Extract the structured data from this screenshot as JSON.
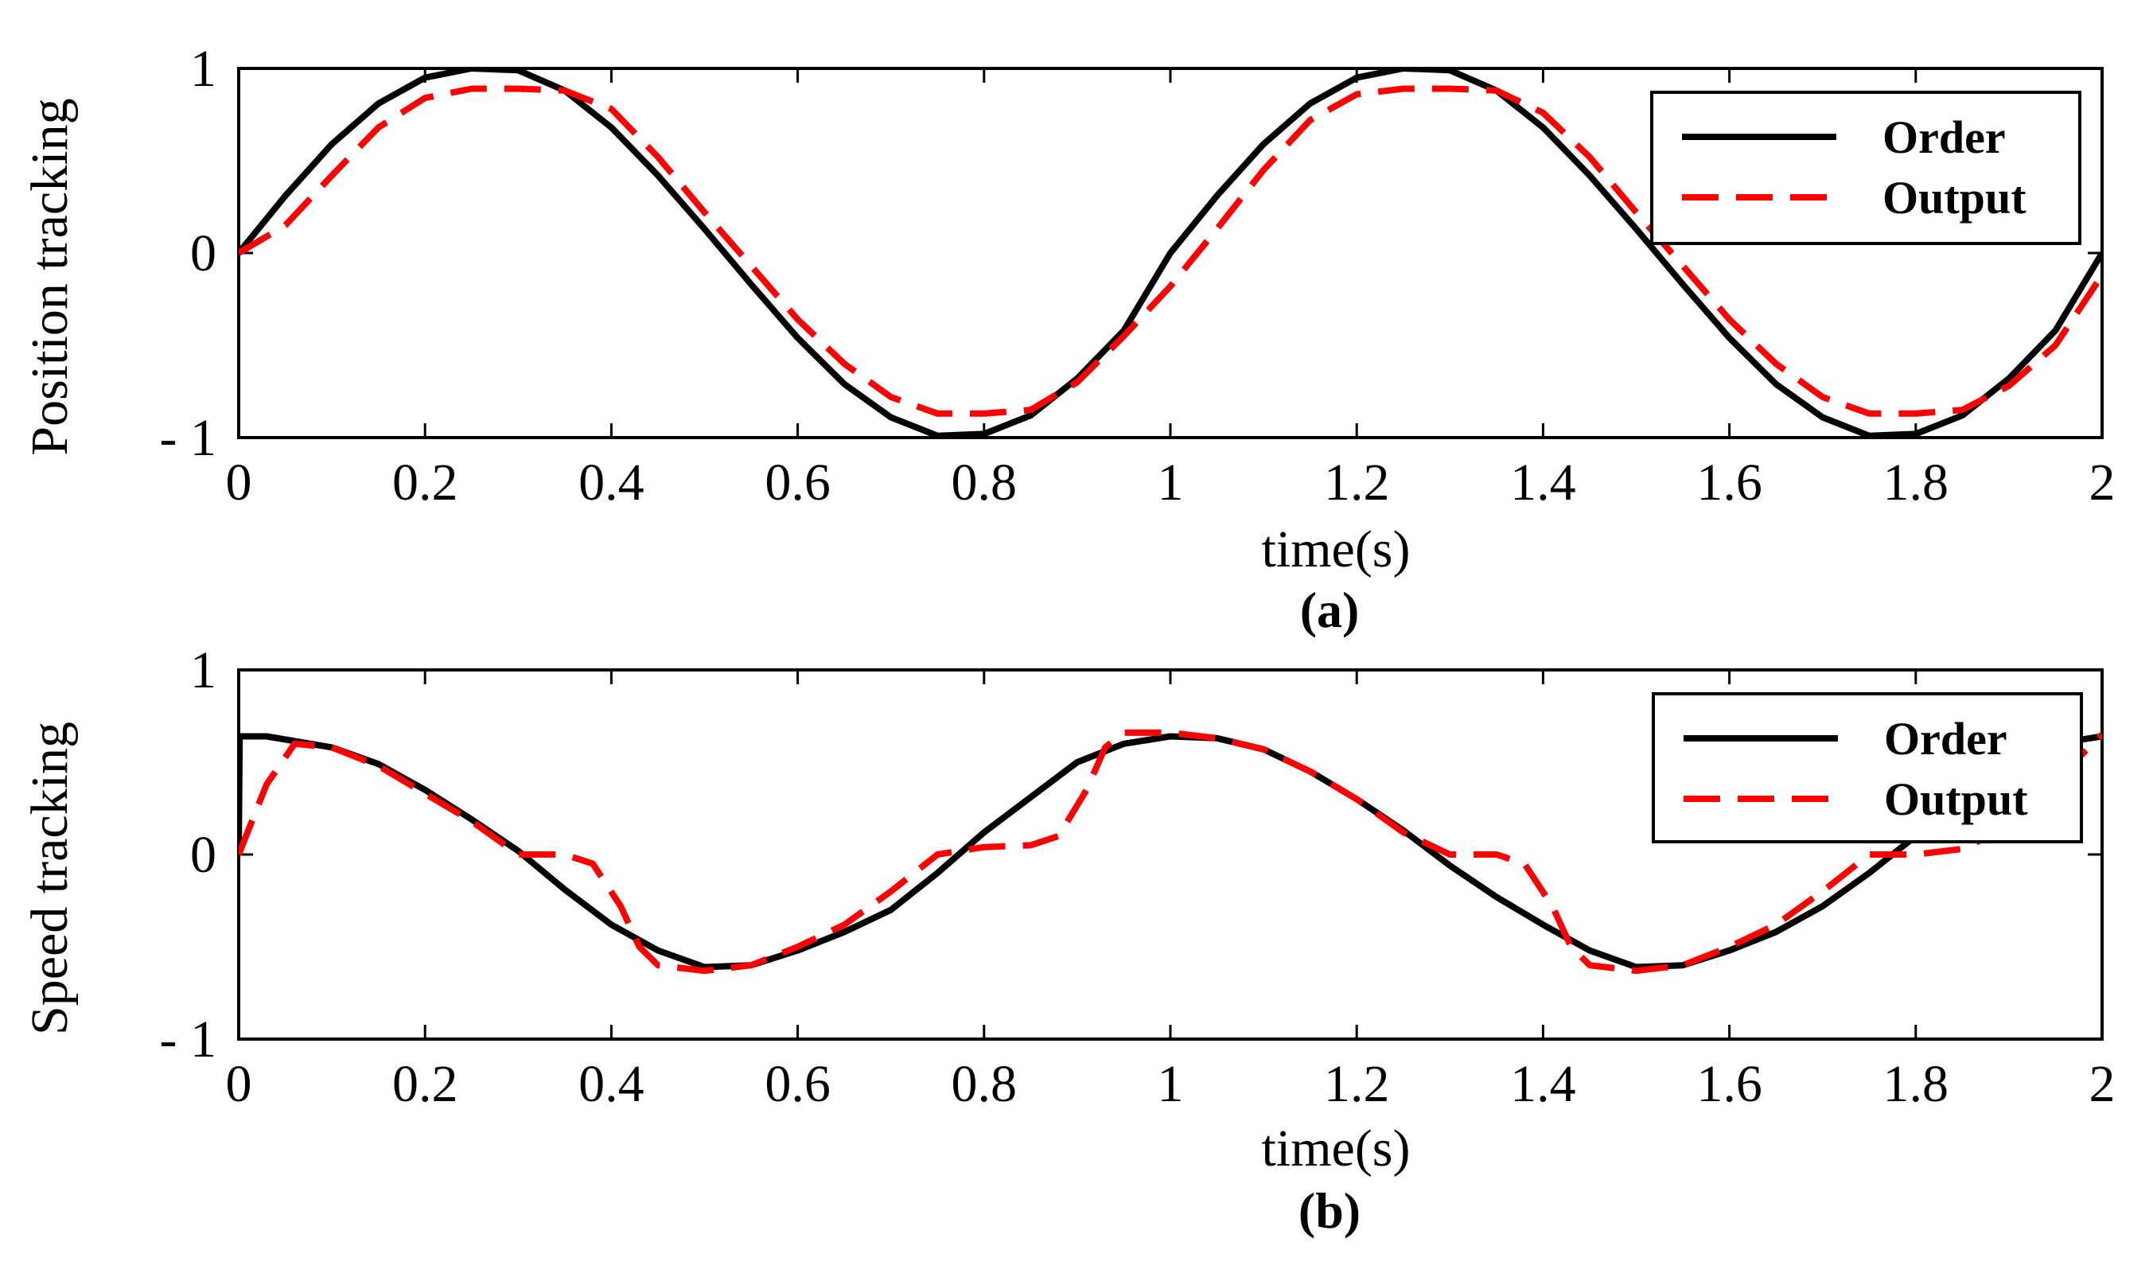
{
  "chart_data": [
    {
      "id": "a",
      "type": "line",
      "caption": "(a)",
      "xlabel": "time(s)",
      "ylabel": "Position tracking",
      "xlim": [
        0,
        2
      ],
      "ylim": [
        -1,
        1
      ],
      "xticks": [
        0,
        0.2,
        0.4,
        0.6,
        0.8,
        1,
        1.2,
        1.4,
        1.6,
        1.8,
        2
      ],
      "xtick_labels": [
        "0",
        "0.2",
        "0.4",
        "0.6",
        "0.8",
        "1",
        "1.2",
        "1.4",
        "1.6",
        "1.8",
        "2"
      ],
      "yticks": [
        -1,
        0,
        1
      ],
      "ytick_labels": [
        "- 1",
        "0",
        "1"
      ],
      "grid": false,
      "legend_position": "top-right",
      "x": [
        0,
        0.05,
        0.1,
        0.15,
        0.2,
        0.25,
        0.3,
        0.35,
        0.4,
        0.45,
        0.5,
        0.55,
        0.6,
        0.65,
        0.7,
        0.75,
        0.8,
        0.85,
        0.9,
        0.95,
        1,
        1.05,
        1.1,
        1.15,
        1.2,
        1.25,
        1.3,
        1.35,
        1.4,
        1.45,
        1.5,
        1.55,
        1.6,
        1.65,
        1.7,
        1.75,
        1.8,
        1.85,
        1.9,
        1.95,
        2
      ],
      "series": [
        {
          "name": "Order",
          "color": "#000000",
          "dash": "solid",
          "values": [
            0,
            0.31,
            0.59,
            0.81,
            0.95,
            1.0,
            0.99,
            0.88,
            0.68,
            0.42,
            0.13,
            -0.17,
            -0.46,
            -0.71,
            -0.89,
            -0.99,
            -0.98,
            -0.88,
            -0.68,
            -0.42,
            0.0,
            0.31,
            0.59,
            0.81,
            0.95,
            1.0,
            0.99,
            0.88,
            0.68,
            0.42,
            0.13,
            -0.17,
            -0.46,
            -0.71,
            -0.89,
            -0.99,
            -0.98,
            -0.88,
            -0.68,
            -0.42,
            0.0
          ]
        },
        {
          "name": "Output",
          "color": "#ff0000",
          "dash": "dashed",
          "values": [
            0,
            0.15,
            0.42,
            0.68,
            0.84,
            0.89,
            0.89,
            0.88,
            0.78,
            0.52,
            0.22,
            -0.07,
            -0.36,
            -0.6,
            -0.78,
            -0.87,
            -0.87,
            -0.85,
            -0.7,
            -0.45,
            -0.18,
            0.13,
            0.45,
            0.72,
            0.86,
            0.89,
            0.89,
            0.88,
            0.76,
            0.52,
            0.22,
            -0.07,
            -0.36,
            -0.6,
            -0.78,
            -0.87,
            -0.87,
            -0.85,
            -0.72,
            -0.5,
            -0.12
          ]
        }
      ]
    },
    {
      "id": "b",
      "type": "line",
      "caption": "(b)",
      "xlabel": "time(s)",
      "ylabel": "Speed tracking",
      "xlim": [
        0,
        2
      ],
      "ylim": [
        -1,
        1
      ],
      "xticks": [
        0,
        0.2,
        0.4,
        0.6,
        0.8,
        1,
        1.2,
        1.4,
        1.6,
        1.8,
        2
      ],
      "xtick_labels": [
        "0",
        "0.2",
        "0.4",
        "0.6",
        "0.8",
        "1",
        "1.2",
        "1.4",
        "1.6",
        "1.8",
        "2"
      ],
      "yticks": [
        -1,
        0,
        1
      ],
      "ytick_labels": [
        "- 1",
        "0",
        "1"
      ],
      "grid": false,
      "legend_position": "top-right",
      "series": [
        {
          "name": "Order",
          "color": "#000000",
          "dash": "solid",
          "x": [
            0,
            0.001,
            0.03,
            0.1,
            0.15,
            0.2,
            0.25,
            0.3,
            0.35,
            0.4,
            0.45,
            0.5,
            0.55,
            0.6,
            0.65,
            0.7,
            0.75,
            0.8,
            0.85,
            0.9,
            0.95,
            1.0,
            1.05,
            1.1,
            1.15,
            1.2,
            1.25,
            1.3,
            1.35,
            1.4,
            1.45,
            1.5,
            1.55,
            1.6,
            1.65,
            1.7,
            1.75,
            1.8,
            1.85,
            1.9,
            1.95,
            2
          ],
          "values": [
            0,
            0.64,
            0.64,
            0.58,
            0.49,
            0.35,
            0.19,
            0.02,
            -0.19,
            -0.38,
            -0.52,
            -0.61,
            -0.6,
            -0.52,
            -0.42,
            -0.3,
            -0.1,
            0.12,
            0.31,
            0.5,
            0.6,
            0.64,
            0.63,
            0.57,
            0.45,
            0.3,
            0.13,
            -0.06,
            -0.23,
            -0.38,
            -0.52,
            -0.61,
            -0.6,
            -0.52,
            -0.42,
            -0.28,
            -0.1,
            0.1,
            0.3,
            0.48,
            0.6,
            0.64
          ]
        },
        {
          "name": "Output",
          "color": "#ff0000",
          "dash": "dashed",
          "x": [
            0,
            0.03,
            0.06,
            0.1,
            0.15,
            0.2,
            0.25,
            0.3,
            0.35,
            0.38,
            0.41,
            0.43,
            0.45,
            0.5,
            0.55,
            0.6,
            0.65,
            0.7,
            0.75,
            0.8,
            0.85,
            0.88,
            0.91,
            0.93,
            0.95,
            1.0,
            1.05,
            1.1,
            1.15,
            1.2,
            1.25,
            1.3,
            1.35,
            1.38,
            1.41,
            1.43,
            1.45,
            1.5,
            1.55,
            1.6,
            1.65,
            1.7,
            1.75,
            1.8,
            1.85,
            1.9,
            1.95,
            2
          ],
          "values": [
            0,
            0.38,
            0.6,
            0.58,
            0.48,
            0.33,
            0.18,
            0.0,
            0.0,
            -0.05,
            -0.28,
            -0.5,
            -0.6,
            -0.63,
            -0.6,
            -0.5,
            -0.38,
            -0.2,
            0.0,
            0.04,
            0.05,
            0.1,
            0.35,
            0.58,
            0.66,
            0.66,
            0.63,
            0.57,
            0.45,
            0.3,
            0.12,
            0.0,
            0.0,
            -0.05,
            -0.28,
            -0.5,
            -0.6,
            -0.63,
            -0.6,
            -0.5,
            -0.38,
            -0.2,
            0.0,
            0.0,
            0.03,
            0.15,
            0.4,
            0.65
          ]
        }
      ]
    }
  ]
}
